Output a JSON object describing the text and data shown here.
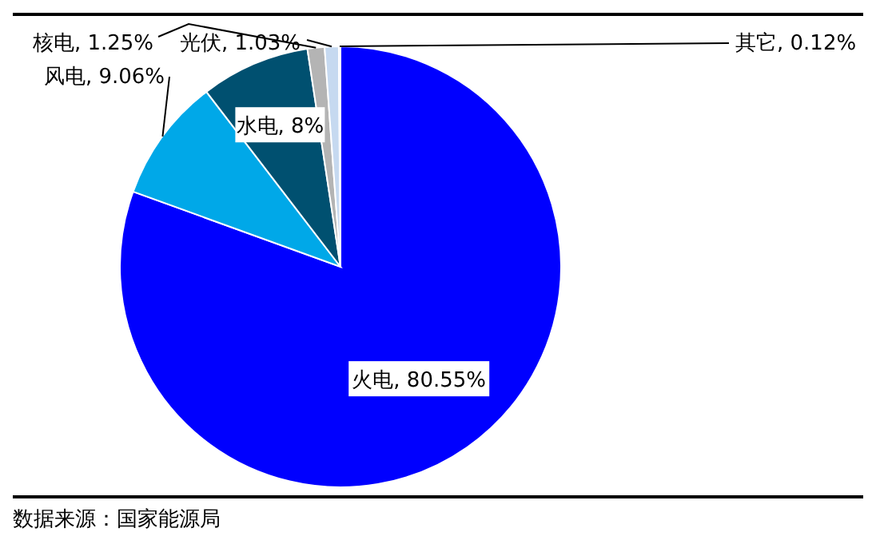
{
  "chart_data": {
    "type": "pie",
    "categories": [
      "火电",
      "风电",
      "水电",
      "核电",
      "光伏",
      "其它"
    ],
    "values": [
      80.55,
      9.06,
      8,
      1.25,
      1.03,
      0.12
    ],
    "value_labels": [
      "80.55%",
      "9.06%",
      "8%",
      "1.25%",
      "1.03%",
      "0.12%"
    ],
    "colors": [
      "#0000ff",
      "#00a8e8",
      "#005070",
      "#b4b4b4",
      "#c6d9f0",
      "#e4ecf8"
    ],
    "annotations": [
      "数据来源：国家能源局"
    ]
  }
}
